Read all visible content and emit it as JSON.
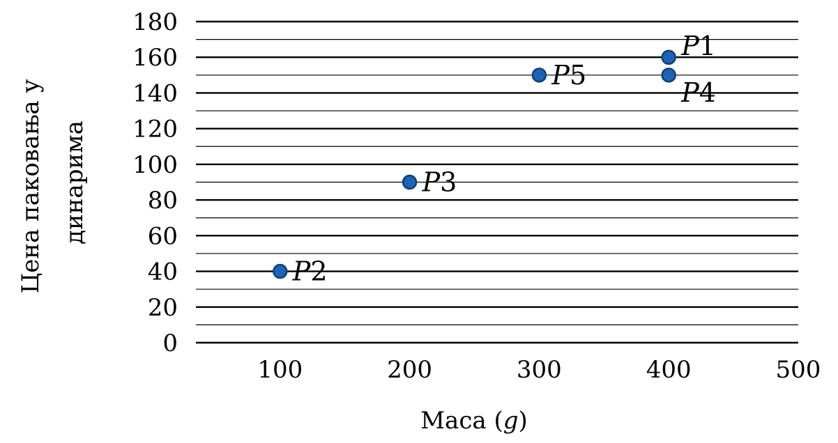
{
  "chart_data": {
    "type": "scatter",
    "title": "",
    "xlabel": "Маса",
    "xlabel_unit": "g",
    "ylabel_line1": "Цена паковања у",
    "ylabel_line2": "динарима",
    "xlim": [
      35,
      500
    ],
    "ylim": [
      0,
      180
    ],
    "xticks": [
      100,
      200,
      300,
      400,
      500
    ],
    "yticks": [
      0,
      20,
      40,
      60,
      80,
      100,
      120,
      140,
      160,
      180
    ],
    "grid": "horizontal",
    "marker_color": "#1f63b5",
    "marker_edge_color": "#0e3f78",
    "points": [
      {
        "label": "P1",
        "x": 400,
        "y": 160,
        "label_position": "upper-right"
      },
      {
        "label": "P2",
        "x": 100,
        "y": 40,
        "label_position": "right"
      },
      {
        "label": "P3",
        "x": 200,
        "y": 90,
        "label_position": "right"
      },
      {
        "label": "P4",
        "x": 400,
        "y": 150,
        "label_position": "lower-right"
      },
      {
        "label": "P5",
        "x": 300,
        "y": 150,
        "label_position": "right"
      }
    ]
  }
}
